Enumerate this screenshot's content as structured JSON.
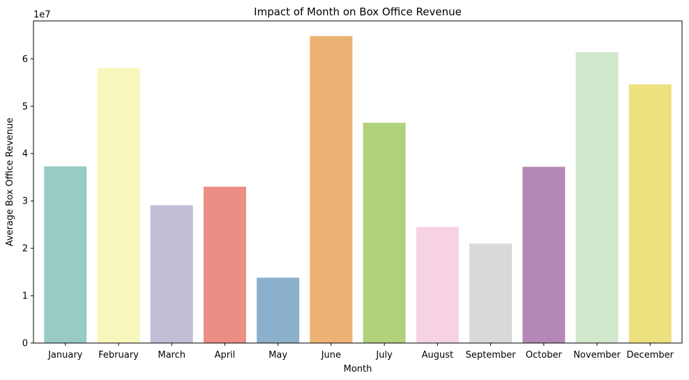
{
  "chart_data": {
    "type": "bar",
    "title": "Impact of Month on Box Office Revenue",
    "xlabel": "Month",
    "ylabel": "Average Box Office Revenue",
    "offset_text": "1e7",
    "categories": [
      "January",
      "February",
      "March",
      "April",
      "May",
      "June",
      "July",
      "August",
      "September",
      "October",
      "November",
      "December"
    ],
    "values": [
      37300000,
      58000000,
      29100000,
      33000000,
      13800000,
      64800000,
      46500000,
      24500000,
      21000000,
      37200000,
      61400000,
      54600000
    ],
    "colors": [
      "#98cbc4",
      "#f7f7bb",
      "#c2bed7",
      "#eb8e83",
      "#8bb0cb",
      "#ebb274",
      "#b1d17b",
      "#f6d2e4",
      "#d9d9d9",
      "#b587b6",
      "#d0e7cc",
      "#ece07f"
    ],
    "ylim": [
      0,
      68000000
    ],
    "y_ticks": [
      0,
      10000000,
      20000000,
      30000000,
      40000000,
      50000000,
      60000000
    ],
    "y_tick_labels": [
      "0",
      "1",
      "2",
      "3",
      "4",
      "5",
      "6"
    ],
    "grid": false,
    "legend": "none"
  }
}
